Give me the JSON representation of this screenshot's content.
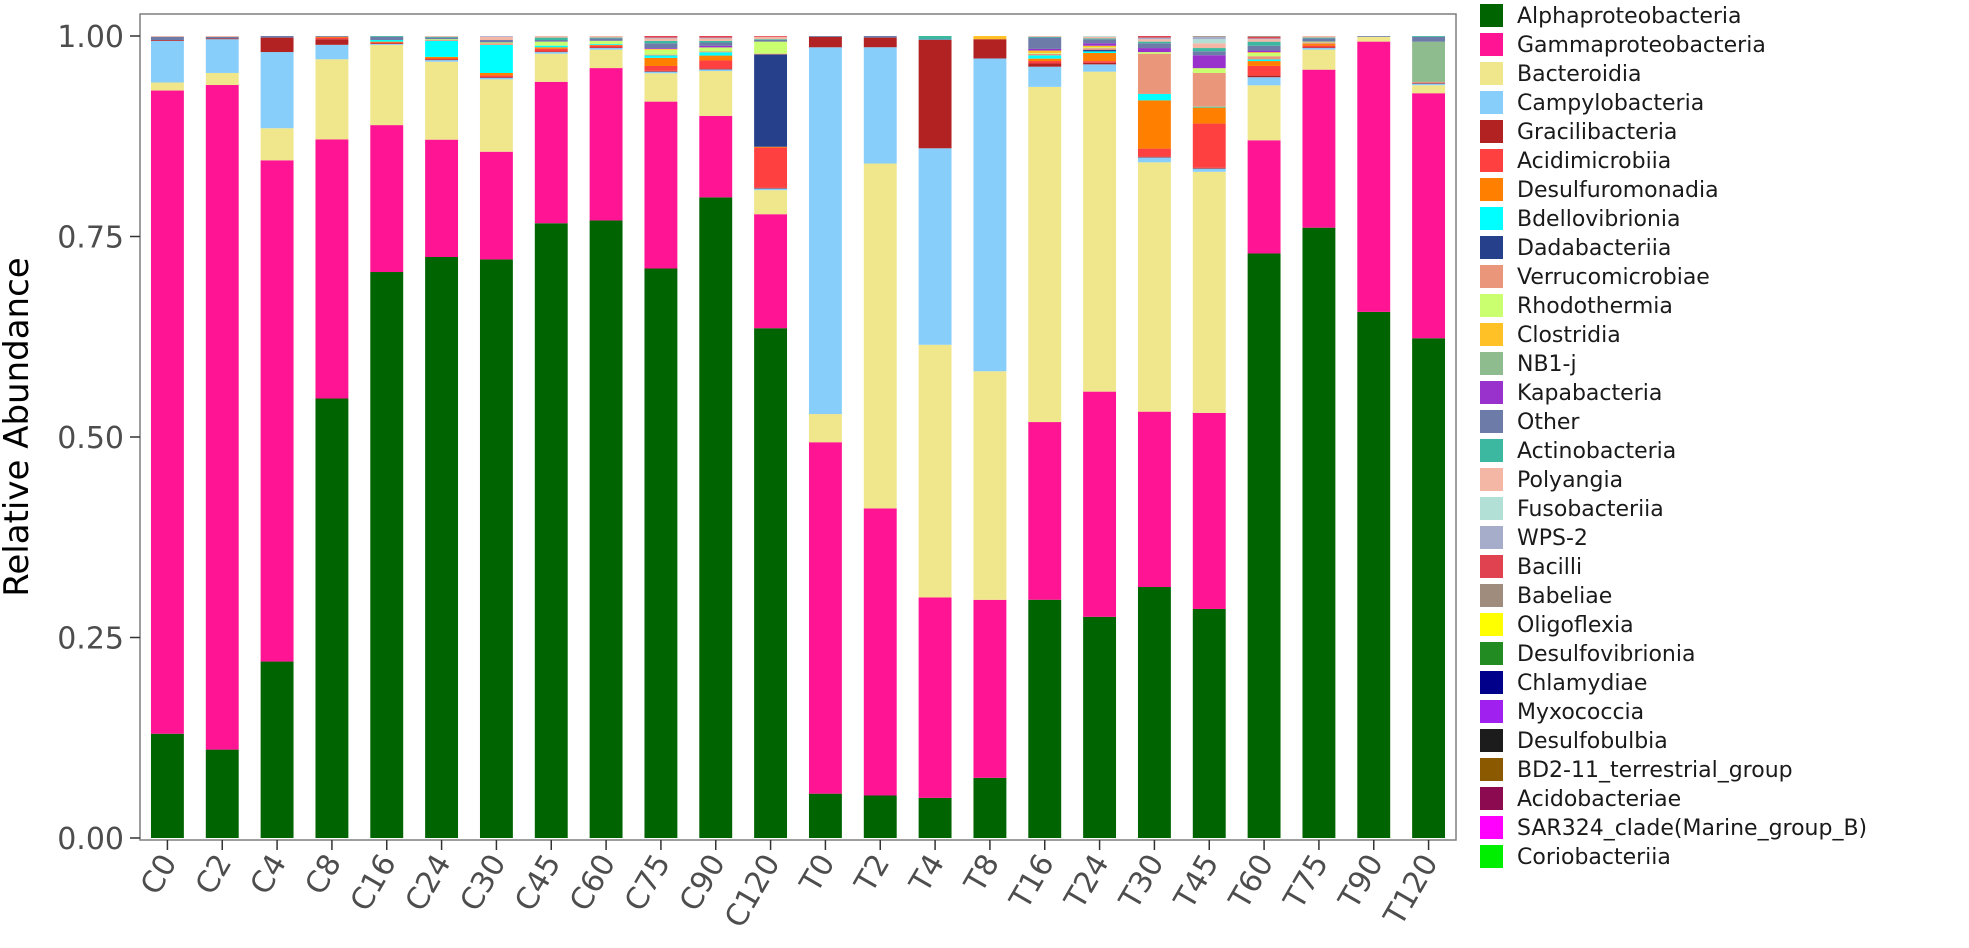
{
  "chart_data": {
    "type": "bar",
    "stacked": true,
    "ylabel": "Relative Abundance",
    "xlabel": "",
    "ylim": [
      0,
      1
    ],
    "yticks": [
      "0.00",
      "0.25",
      "0.50",
      "0.75",
      "1.00"
    ],
    "legend_position": "right",
    "categories": [
      "C0",
      "C2",
      "C4",
      "C8",
      "C16",
      "C24",
      "C30",
      "C45",
      "C60",
      "C75",
      "C90",
      "C120",
      "T0",
      "T2",
      "T4",
      "T8",
      "T16",
      "T24",
      "T30",
      "T45",
      "T60",
      "T75",
      "T90",
      "T120"
    ],
    "series": [
      {
        "name": "Alphaproteobacteria",
        "color": "#006400",
        "values": [
          0.13,
          0.11,
          0.22,
          0.548,
          0.705,
          0.723,
          0.72,
          0.765,
          0.77,
          0.703,
          0.786,
          0.635,
          0.055,
          0.053,
          0.05,
          0.075,
          0.295,
          0.273,
          0.312,
          0.285,
          0.723,
          0.761,
          0.656,
          0.62
        ]
      },
      {
        "name": "Gammaproteobacteria",
        "color": "#FF1493",
        "values": [
          0.802,
          0.827,
          0.625,
          0.323,
          0.183,
          0.146,
          0.134,
          0.176,
          0.19,
          0.206,
          0.1,
          0.142,
          0.436,
          0.358,
          0.25,
          0.222,
          0.22,
          0.278,
          0.218,
          0.244,
          0.14,
          0.197,
          0.337,
          0.304
        ]
      },
      {
        "name": "Bacteroidia",
        "color": "#F0E68C",
        "values": [
          0.01,
          0.015,
          0.04,
          0.1,
          0.1,
          0.097,
          0.09,
          0.035,
          0.023,
          0.035,
          0.055,
          0.03,
          0.035,
          0.43,
          0.315,
          0.285,
          0.415,
          0.395,
          0.31,
          0.3,
          0.068,
          0.025,
          0.006,
          0.01
        ]
      },
      {
        "name": "Campylobacteria",
        "color": "#87CEFA",
        "values": [
          0.052,
          0.042,
          0.095,
          0.018,
          0.001,
          0.002,
          0.002,
          0.002,
          0.002,
          0.002,
          0.002,
          0.002,
          0.455,
          0.145,
          0.245,
          0.39,
          0.025,
          0.009,
          0.006,
          0.004,
          0.01,
          0.002,
          0.0,
          0.002
        ]
      },
      {
        "name": "Gracilibacteria",
        "color": "#B22222",
        "values": [
          0.001,
          0.001,
          0.018,
          0.007,
          0.001,
          0.001,
          0.001,
          0.001,
          0.001,
          0.001,
          0.001,
          0.001,
          0.013,
          0.012,
          0.135,
          0.024,
          0.004,
          0.002,
          0.001,
          0.001,
          0.002,
          0.001,
          0.0,
          0.001
        ]
      },
      {
        "name": "Acidimicrobiia",
        "color": "#FF4040",
        "values": [
          0.0,
          0.0,
          0.0,
          0.002,
          0.001,
          0.001,
          0.002,
          0.003,
          0.002,
          0.006,
          0.01,
          0.05,
          0.0,
          0.0,
          0.0,
          0.0,
          0.003,
          0.002,
          0.01,
          0.055,
          0.012,
          0.002,
          0.0,
          0.0
        ]
      },
      {
        "name": "Desulfuromonadia",
        "color": "#FF7F00",
        "values": [
          0.0,
          0.0,
          0.0,
          0.001,
          0.001,
          0.002,
          0.003,
          0.002,
          0.001,
          0.01,
          0.006,
          0.001,
          0.0,
          0.0,
          0.0,
          0.0,
          0.003,
          0.01,
          0.06,
          0.02,
          0.006,
          0.002,
          0.0,
          0.0
        ]
      },
      {
        "name": "Bdellovibrionia",
        "color": "#00FFFF",
        "values": [
          0.0,
          0.0,
          0.0,
          0.0,
          0.002,
          0.02,
          0.035,
          0.002,
          0.001,
          0.003,
          0.004,
          0.0,
          0.0,
          0.0,
          0.0,
          0.0,
          0.004,
          0.002,
          0.008,
          0.001,
          0.002,
          0.0,
          0.0,
          0.0
        ]
      },
      {
        "name": "Dadabacteriia",
        "color": "#27408B",
        "values": [
          0.0,
          0.0,
          0.0,
          0.0,
          0.0,
          0.0,
          0.0,
          0.0,
          0.0,
          0.0,
          0.0,
          0.115,
          0.0,
          0.0,
          0.0,
          0.0,
          0.0,
          0.002,
          0.0,
          0.0,
          0.0,
          0.0,
          0.0,
          0.0
        ]
      },
      {
        "name": "Verrucomicrobiae",
        "color": "#E9967A",
        "values": [
          0.0,
          0.0,
          0.0,
          0.0,
          0.0,
          0.001,
          0.002,
          0.0,
          0.0,
          0.001,
          0.001,
          0.001,
          0.0,
          0.0,
          0.0,
          0.0,
          0.002,
          0.002,
          0.05,
          0.042,
          0.004,
          0.002,
          0.0,
          0.001
        ]
      },
      {
        "name": "Rhodothermia",
        "color": "#CAFF70",
        "values": [
          0.0,
          0.0,
          0.0,
          0.0,
          0.0,
          0.001,
          0.001,
          0.005,
          0.004,
          0.006,
          0.005,
          0.015,
          0.0,
          0.0,
          0.0,
          0.0,
          0.001,
          0.001,
          0.002,
          0.006,
          0.004,
          0.001,
          0.0,
          0.0
        ]
      },
      {
        "name": "Clostridia",
        "color": "#FFC125",
        "values": [
          0.0,
          0.0,
          0.0,
          0.0,
          0.0,
          0.0,
          0.0,
          0.0,
          0.0,
          0.001,
          0.0,
          0.0,
          0.0,
          0.0,
          0.0,
          0.004,
          0.003,
          0.002,
          0.0,
          0.0,
          0.001,
          0.0,
          0.0,
          0.0
        ]
      },
      {
        "name": "NB1-j",
        "color": "#8FBC8F",
        "values": [
          0.0,
          0.0,
          0.0,
          0.0,
          0.0,
          0.0,
          0.0,
          0.0,
          0.0,
          0.0,
          0.0,
          0.0,
          0.0,
          0.0,
          0.0,
          0.0,
          0.0,
          0.0,
          0.0,
          0.0,
          0.0,
          0.0,
          0.0,
          0.05
        ]
      },
      {
        "name": "Kapabacteria",
        "color": "#9932CC",
        "values": [
          0.0,
          0.0,
          0.0,
          0.0,
          0.0,
          0.0,
          0.0,
          0.0,
          0.0,
          0.001,
          0.002,
          0.0,
          0.0,
          0.0,
          0.0,
          0.0,
          0.002,
          0.003,
          0.005,
          0.016,
          0.002,
          0.0,
          0.0,
          0.0
        ]
      },
      {
        "name": "Other",
        "color": "#6C7BA8",
        "values": [
          0.004,
          0.002,
          0.002,
          0.001,
          0.004,
          0.002,
          0.003,
          0.002,
          0.003,
          0.006,
          0.004,
          0.002,
          0.001,
          0.002,
          0.001,
          0.0,
          0.014,
          0.005,
          0.006,
          0.005,
          0.006,
          0.004,
          0.001,
          0.006
        ]
      },
      {
        "name": "Actinobacteria",
        "color": "#3CB8A0",
        "values": [
          0.0,
          0.0,
          0.0,
          0.0,
          0.001,
          0.001,
          0.0,
          0.003,
          0.001,
          0.003,
          0.002,
          0.001,
          0.0,
          0.0,
          0.004,
          0.0,
          0.001,
          0.001,
          0.002,
          0.004,
          0.005,
          0.001,
          0.0,
          0.001
        ]
      },
      {
        "name": "Polyangia",
        "color": "#F4B7A6",
        "values": [
          0.001,
          0.001,
          0.0,
          0.0,
          0.0,
          0.001,
          0.004,
          0.002,
          0.002,
          0.003,
          0.003,
          0.003,
          0.0,
          0.0,
          0.0,
          0.0,
          0.001,
          0.002,
          0.003,
          0.006,
          0.003,
          0.002,
          0.0,
          0.0
        ]
      },
      {
        "name": "Fusobacteriia",
        "color": "#B2DFD6",
        "values": [
          0.0,
          0.0,
          0.0,
          0.0,
          0.0,
          0.0,
          0.0,
          0.0,
          0.0,
          0.0,
          0.0,
          0.0,
          0.0,
          0.0,
          0.0,
          0.0,
          0.0,
          0.001,
          0.0,
          0.005,
          0.0,
          0.0,
          0.0,
          0.0
        ]
      },
      {
        "name": "WPS-2",
        "color": "#A6ADCB",
        "values": [
          0.0,
          0.0,
          0.0,
          0.0,
          0.0,
          0.0,
          0.001,
          0.0,
          0.0,
          0.001,
          0.001,
          0.0,
          0.0,
          0.0,
          0.0,
          0.0,
          0.0,
          0.0,
          0.002,
          0.003,
          0.001,
          0.0,
          0.0,
          0.0
        ]
      },
      {
        "name": "Bacilli",
        "color": "#E0424F",
        "values": [
          0.0,
          0.0,
          0.0,
          0.0,
          0.0,
          0.0,
          0.0,
          0.0,
          0.0,
          0.002,
          0.002,
          0.001,
          0.0,
          0.0,
          0.0,
          0.0,
          0.0,
          0.0,
          0.002,
          0.0,
          0.002,
          0.0,
          0.0,
          0.0
        ]
      },
      {
        "name": "Babeliae",
        "color": "#A08C7D",
        "values": [
          0.0,
          0.0,
          0.0,
          0.0,
          0.0,
          0.0,
          0.0,
          0.0,
          0.0,
          0.0,
          0.0,
          0.0,
          0.0,
          0.0,
          0.0,
          0.0,
          0.0,
          0.0,
          0.0,
          0.001,
          0.001,
          0.0,
          0.0,
          0.0
        ]
      },
      {
        "name": "Oligoflexia",
        "color": "#FFFF00",
        "values": [
          0.0,
          0.0,
          0.0,
          0.0,
          0.0,
          0.0,
          0.0,
          0.0,
          0.0,
          0.0,
          0.0,
          0.0,
          0.0,
          0.0,
          0.0,
          0.0,
          0.0,
          0.0,
          0.0,
          0.0,
          0.0,
          0.0,
          0.0,
          0.0
        ]
      },
      {
        "name": "Desulfovibrionia",
        "color": "#228B22",
        "values": [
          0.0,
          0.0,
          0.0,
          0.0,
          0.0,
          0.0,
          0.0,
          0.0,
          0.0,
          0.0,
          0.0,
          0.0,
          0.0,
          0.0,
          0.0,
          0.0,
          0.0,
          0.0,
          0.0,
          0.0,
          0.0,
          0.0,
          0.0,
          0.0
        ]
      },
      {
        "name": "Chlamydiae",
        "color": "#00008B",
        "values": [
          0.0,
          0.0,
          0.0,
          0.0,
          0.0,
          0.0,
          0.0,
          0.0,
          0.0,
          0.0,
          0.0,
          0.0,
          0.0,
          0.0,
          0.0,
          0.0,
          0.0,
          0.0,
          0.0,
          0.0,
          0.0,
          0.0,
          0.0,
          0.0
        ]
      },
      {
        "name": "Myxococcia",
        "color": "#A020F0",
        "values": [
          0.0,
          0.0,
          0.0,
          0.0,
          0.0,
          0.0,
          0.0,
          0.0,
          0.0,
          0.0,
          0.0,
          0.0,
          0.0,
          0.0,
          0.0,
          0.0,
          0.0,
          0.0,
          0.0,
          0.0,
          0.0,
          0.0,
          0.0,
          0.0
        ]
      },
      {
        "name": "Desulfobulbia",
        "color": "#1C1C1C",
        "values": [
          0.0,
          0.0,
          0.0,
          0.0,
          0.0,
          0.0,
          0.0,
          0.0,
          0.0,
          0.0,
          0.0,
          0.0,
          0.0,
          0.0,
          0.0,
          0.0,
          0.0,
          0.0,
          0.0,
          0.0,
          0.0,
          0.0,
          0.0,
          0.0
        ]
      },
      {
        "name": "BD2-11_terrestrial_group",
        "color": "#8B5A00",
        "values": [
          0.0,
          0.0,
          0.0,
          0.0,
          0.0,
          0.0,
          0.0,
          0.0,
          0.0,
          0.0,
          0.0,
          0.0,
          0.0,
          0.0,
          0.0,
          0.0,
          0.0,
          0.0,
          0.0,
          0.0,
          0.0,
          0.0,
          0.0,
          0.0
        ]
      },
      {
        "name": "Acidobacteriae",
        "color": "#8B0A50",
        "values": [
          0.0,
          0.0,
          0.0,
          0.0,
          0.0,
          0.0,
          0.0,
          0.0,
          0.0,
          0.0,
          0.0,
          0.0,
          0.0,
          0.0,
          0.0,
          0.0,
          0.0,
          0.0,
          0.0,
          0.0,
          0.0,
          0.0,
          0.0,
          0.0
        ]
      },
      {
        "name": "SAR324_clade(Marine_group_B)",
        "color": "#FF00FF",
        "values": [
          0.0,
          0.0,
          0.0,
          0.0,
          0.0,
          0.0,
          0.0,
          0.0,
          0.0,
          0.0,
          0.0,
          0.0,
          0.0,
          0.0,
          0.0,
          0.0,
          0.0,
          0.0,
          0.0,
          0.0,
          0.0,
          0.0,
          0.0,
          0.0
        ]
      },
      {
        "name": "Coriobacteriia",
        "color": "#00EE00",
        "values": [
          0.0,
          0.0,
          0.0,
          0.0,
          0.0,
          0.0,
          0.0,
          0.0,
          0.0,
          0.0,
          0.0,
          0.0,
          0.0,
          0.0,
          0.0,
          0.0,
          0.0,
          0.0,
          0.0,
          0.0,
          0.0,
          0.0,
          0.0,
          0.0
        ]
      }
    ]
  }
}
